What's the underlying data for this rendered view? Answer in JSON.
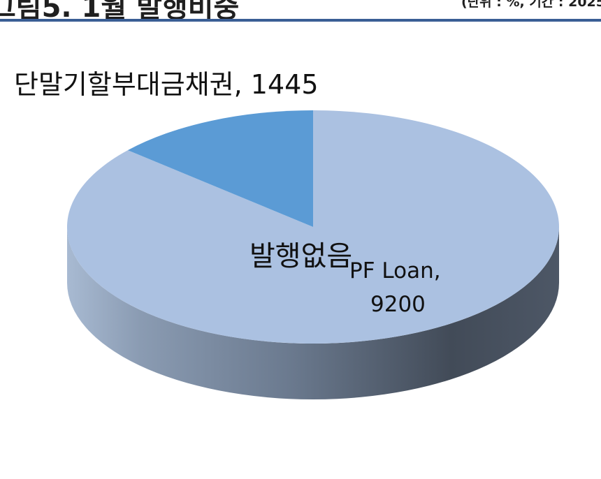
{
  "header": {
    "title": "그림5. 1월 발행비중",
    "unit": "(단위 : %, 기간 : 2025"
  },
  "colors": {
    "rule": "#3a5e95",
    "pf_slice_top": "#abc1e1",
    "short_term_slice_top": "#5b9bd5",
    "side_light": "#9fb2ca",
    "side_dark": "#424b58"
  },
  "chart_data": {
    "type": "pie",
    "style": "3d",
    "slices": [
      {
        "label": "PF Loan",
        "value": 9200,
        "color": "#abc1e1"
      },
      {
        "label": "단말기할부대금채권",
        "value": 1445,
        "color": "#5b9bd5"
      }
    ],
    "data_labels": [
      "단말기할부대금채권, 1445",
      "PF Loan,",
      "9200"
    ],
    "annotation": "발행없음"
  }
}
